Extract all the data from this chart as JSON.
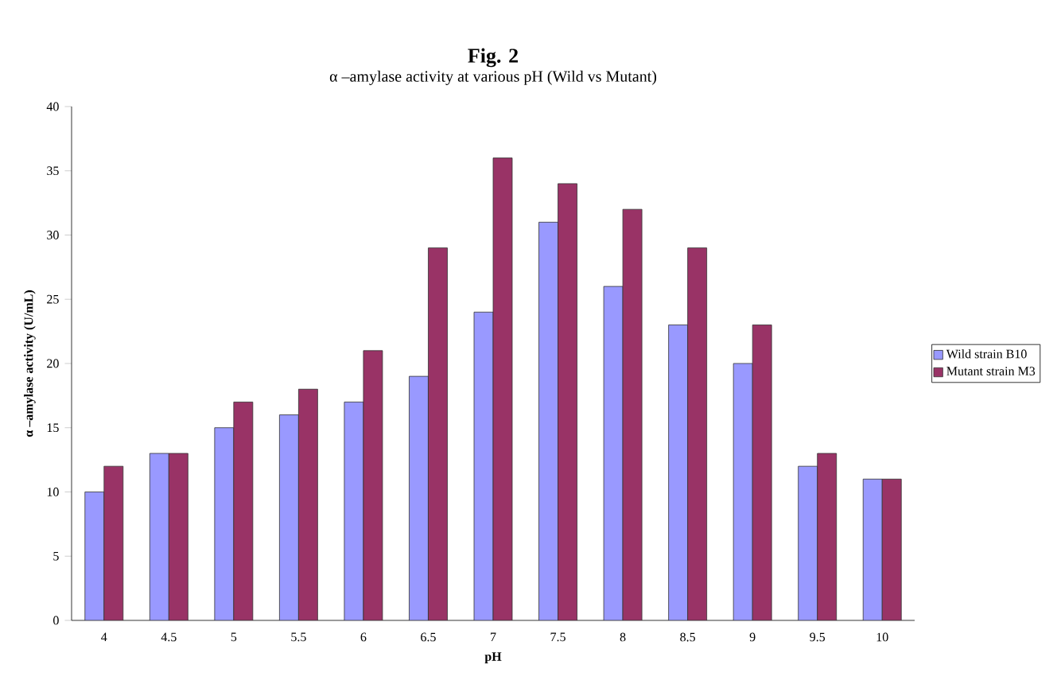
{
  "chart_data": {
    "type": "bar",
    "title": "Fig. 2",
    "subtitle": "α –amylase activity at various pH (Wild vs Mutant)",
    "xlabel": "pH",
    "ylabel": "α –amylase activity (U/mL)",
    "categories": [
      "4",
      "4.5",
      "5",
      "5.5",
      "6",
      "6.5",
      "7",
      "7.5",
      "8",
      "8.5",
      "9",
      "9.5",
      "10"
    ],
    "series": [
      {
        "name": "Wild strain B10",
        "color": "#9999ff",
        "values": [
          10,
          13,
          15,
          16,
          17,
          19,
          24,
          31,
          26,
          23,
          20,
          12,
          11
        ]
      },
      {
        "name": "Mutant strain M3",
        "color": "#993366",
        "values": [
          12,
          13,
          17,
          18,
          21,
          29,
          36,
          34,
          32,
          29,
          23,
          13,
          11
        ]
      }
    ],
    "ylim": [
      0,
      40
    ],
    "yticks": [
      0,
      5,
      10,
      15,
      20,
      25,
      30,
      35,
      40
    ],
    "legend": "right",
    "grid": false
  }
}
